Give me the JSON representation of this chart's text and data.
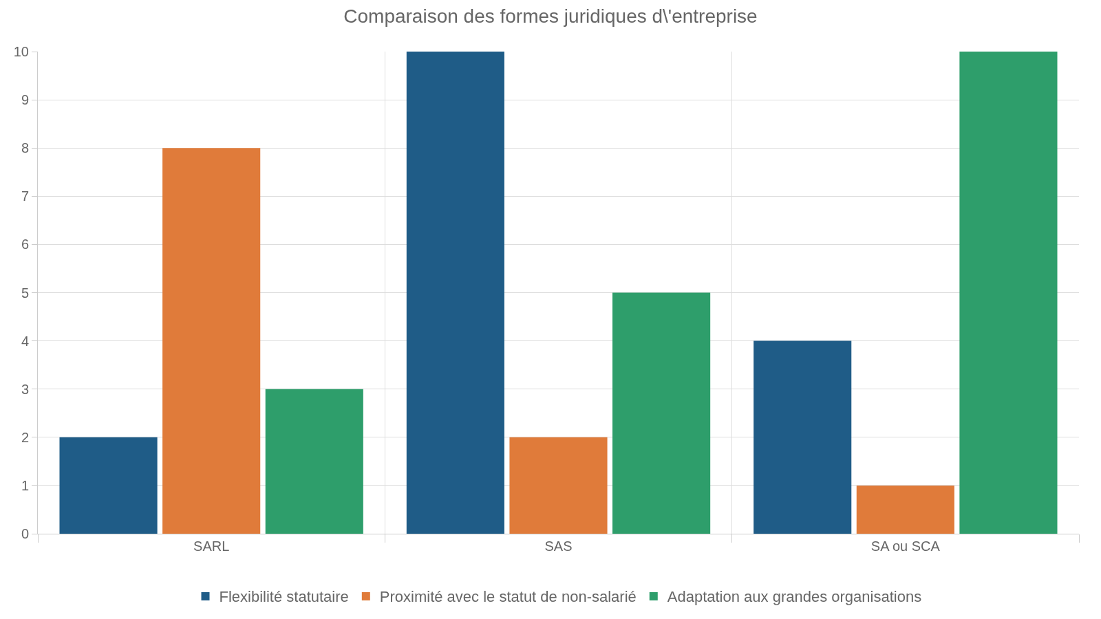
{
  "chart_data": {
    "type": "bar",
    "title": "Comparaison des formes juridiques d\\'entreprise",
    "categories": [
      "SARL",
      "SAS",
      "SA ou SCA"
    ],
    "series": [
      {
        "name": "Flexibilité statutaire",
        "color": "#1f5c87",
        "values": [
          2,
          10,
          4
        ]
      },
      {
        "name": "Proximité avec le statut de non-salarié",
        "color": "#e07b3a",
        "values": [
          8,
          2,
          1
        ]
      },
      {
        "name": "Adaptation aux grandes organisations",
        "color": "#2e9e6b",
        "values": [
          3,
          5,
          10
        ]
      }
    ],
    "ylim": [
      0,
      10
    ],
    "yticks": [
      0,
      1,
      2,
      3,
      4,
      5,
      6,
      7,
      8,
      9,
      10
    ],
    "grid": true,
    "legend": "bottom"
  }
}
